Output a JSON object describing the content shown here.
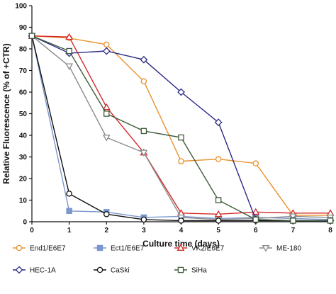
{
  "chart_data": {
    "type": "line",
    "title": "",
    "xlabel": "Culture time (days)",
    "ylabel": "Relative Fluorescence (% of +CTR)",
    "xlim": [
      0,
      8
    ],
    "ylim": [
      0,
      100
    ],
    "x_ticks": [
      "0",
      "1",
      "2",
      "3",
      "4",
      "5",
      "6",
      "7",
      "8"
    ],
    "y_ticks": [
      "0",
      "10",
      "20",
      "30",
      "40",
      "50",
      "60",
      "70",
      "80",
      "90",
      "100"
    ],
    "grid": false,
    "legend_position": "bottom",
    "series": [
      {
        "name": "End1/E6E7",
        "color": "#E8902A",
        "marker": "circle-open",
        "x": [
          0,
          1,
          2,
          3,
          4,
          5,
          6,
          7,
          8
        ],
        "y": [
          86,
          85,
          82,
          65,
          28,
          29,
          27,
          3,
          3
        ]
      },
      {
        "name": "Ect1/E6E7",
        "color": "#7A96CE",
        "marker": "square-filled",
        "x": [
          0,
          1,
          2,
          3,
          4,
          5,
          6,
          7,
          8
        ],
        "y": [
          86,
          5,
          4.5,
          2,
          2.5,
          1.5,
          2,
          1.5,
          1
        ]
      },
      {
        "name": "VK2/E6E7",
        "color": "#D42A2A",
        "marker": "triangle-up-open",
        "x": [
          0,
          1,
          2,
          3,
          4,
          5,
          6,
          7,
          8
        ],
        "y": [
          86,
          85.5,
          53,
          32,
          4,
          3.5,
          4.5,
          4,
          4
        ]
      },
      {
        "name": "ME-180",
        "color": "#8A8A8A",
        "marker": "triangle-down-open",
        "x": [
          0,
          1,
          2,
          3,
          4,
          5,
          6,
          7,
          8
        ],
        "y": [
          86,
          72,
          39,
          32,
          2,
          1,
          1.5,
          2.5,
          2
        ]
      },
      {
        "name": "HEC-1A",
        "color": "#2C2A86",
        "marker": "diamond-open",
        "x": [
          0,
          1,
          2,
          3,
          4,
          5,
          6,
          7,
          8
        ],
        "y": [
          86,
          78,
          79,
          75,
          60,
          46,
          1,
          0.5,
          0.5
        ]
      },
      {
        "name": "CaSki",
        "color": "#111111",
        "marker": "circle-open",
        "x": [
          0,
          1,
          2,
          3,
          4,
          5,
          6,
          7,
          8
        ],
        "y": [
          86,
          13,
          3.5,
          1,
          0.5,
          0.5,
          0.5,
          0.5,
          0.5
        ]
      },
      {
        "name": "SiHa",
        "color": "#3F5A3A",
        "marker": "square-open",
        "x": [
          0,
          1,
          2,
          3,
          4,
          5,
          6,
          7,
          8
        ],
        "y": [
          86,
          79,
          50,
          42,
          39,
          10,
          1,
          0.5,
          0.5
        ]
      }
    ]
  }
}
